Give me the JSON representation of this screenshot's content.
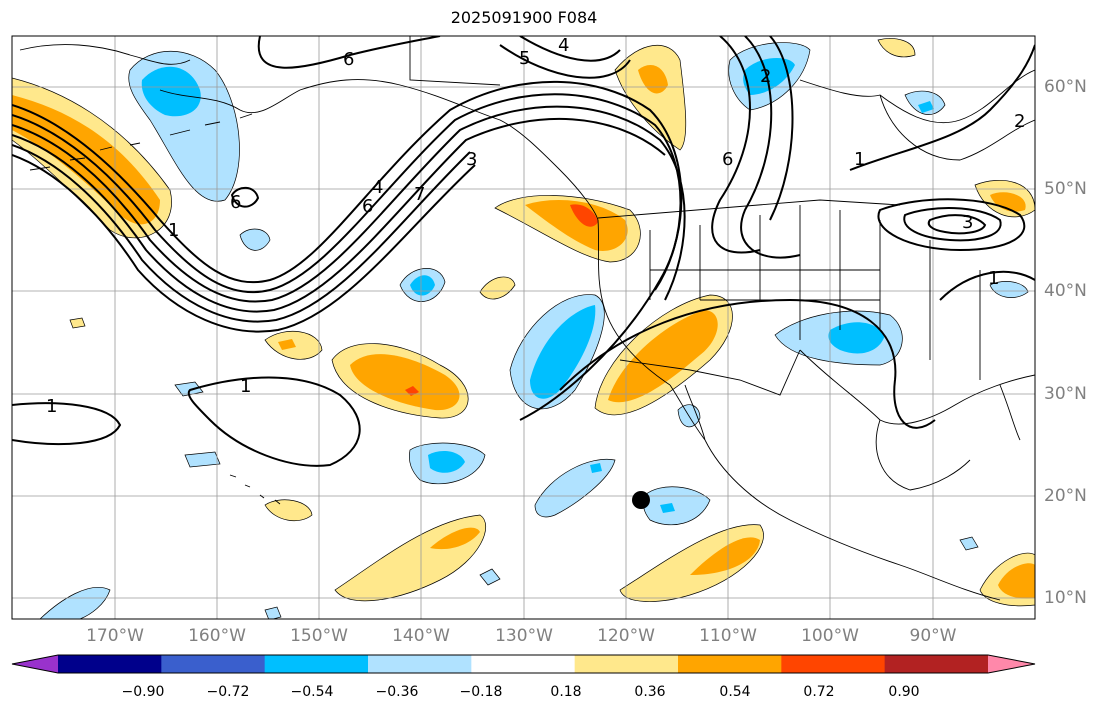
{
  "title": "2025091900 F084",
  "map": {
    "lon_labels": [
      "170°W",
      "160°W",
      "150°W",
      "140°W",
      "130°W",
      "120°W",
      "110°W",
      "100°W",
      "90°W"
    ],
    "lat_labels": [
      "60°N",
      "50°N",
      "40°N",
      "30°N",
      "20°N",
      "10°N"
    ],
    "contour_labels": [
      "4",
      "5",
      "6",
      "2",
      "6",
      "3",
      "4",
      "6",
      "7",
      "1",
      "1",
      "1",
      "6",
      "3",
      "1",
      "2",
      "1"
    ],
    "marker": "black-dot"
  },
  "colorbar": {
    "ticks": [
      "−0.90",
      "−0.72",
      "−0.54",
      "−0.36",
      "−0.18",
      "0.18",
      "0.36",
      "0.54",
      "0.72",
      "0.90"
    ],
    "colors": [
      "#9932cc",
      "#00008b",
      "#3a5fcd",
      "#00bfff",
      "#b0e2ff",
      "#ffffff",
      "#ffe88c",
      "#ffa500",
      "#ff4500",
      "#b22222",
      "#ff88aa"
    ]
  }
}
